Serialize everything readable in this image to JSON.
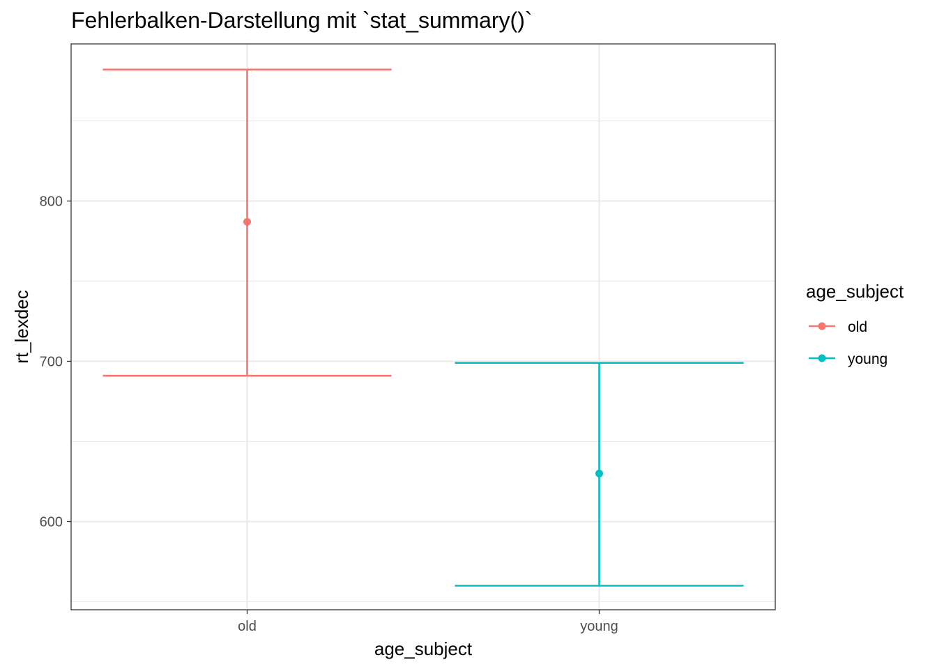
{
  "chart_data": {
    "type": "errorbar",
    "title": "Fehlerbalken-Darstellung mit `stat_summary()`",
    "xlabel": "age_subject",
    "ylabel": "rt_lexdec",
    "categories": [
      "old",
      "young"
    ],
    "ylim": [
      545,
      898
    ],
    "y_ticks": [
      600,
      700,
      800
    ],
    "grid": true,
    "legend": {
      "title": "age_subject",
      "position": "right",
      "entries": [
        "old",
        "young"
      ]
    },
    "series": [
      {
        "name": "old",
        "color": "#F8766D",
        "x": "old",
        "mean": 787,
        "ymin": 691,
        "ymax": 882
      },
      {
        "name": "young",
        "color": "#00BFC4",
        "x": "young",
        "mean": 630,
        "ymin": 560,
        "ymax": 699
      }
    ]
  }
}
